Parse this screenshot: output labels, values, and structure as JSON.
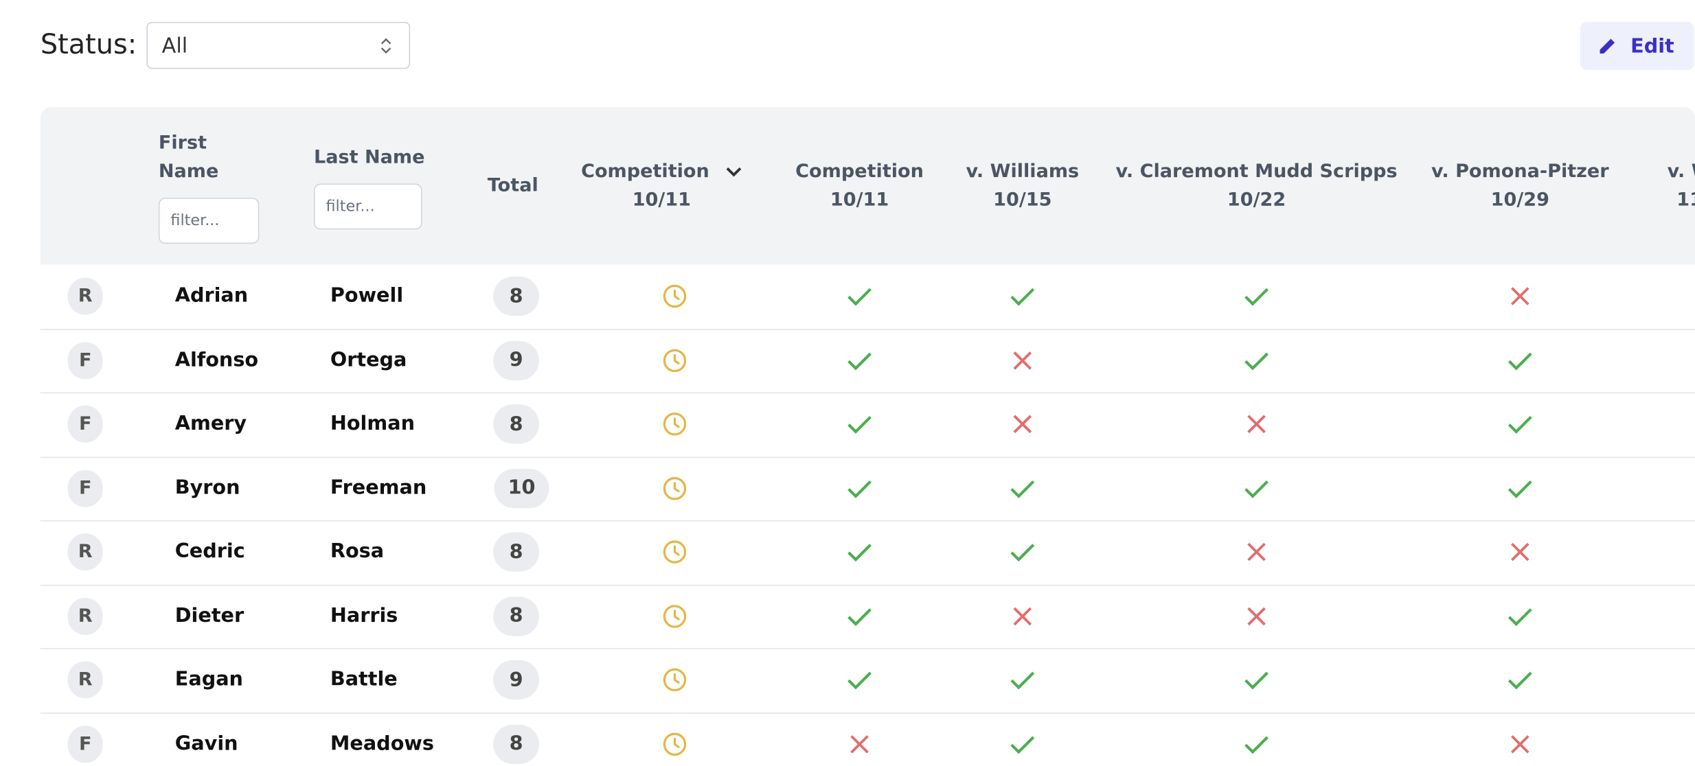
{
  "toolbar": {
    "status_label": "Status:",
    "status_value": "All",
    "edit_button": "Edit"
  },
  "table": {
    "headers": {
      "first_name": "First Name",
      "last_name": "Last Name",
      "total": "Total",
      "filter_placeholder": "filter..."
    },
    "columns": [
      {
        "title": "Competition",
        "date": "10/11",
        "sorted": true
      },
      {
        "title": "Competition",
        "date": "10/11",
        "sorted": false
      },
      {
        "title": "v. Williams",
        "date": "10/15",
        "sorted": false
      },
      {
        "title": "v. Claremont Mudd Scripps",
        "date": "10/22",
        "sorted": false
      },
      {
        "title": "v. Pomona-Pitzer",
        "date": "10/29",
        "sorted": false
      },
      {
        "title": "v. W",
        "date": "11",
        "sorted": false
      }
    ],
    "rows": [
      {
        "status": "R",
        "first": "Adrian",
        "last": "Powell",
        "total": "8",
        "attendance": [
          "pending",
          "present",
          "present",
          "present",
          "absent"
        ]
      },
      {
        "status": "F",
        "first": "Alfonso",
        "last": "Ortega",
        "total": "9",
        "attendance": [
          "pending",
          "present",
          "absent",
          "present",
          "present"
        ]
      },
      {
        "status": "F",
        "first": "Amery",
        "last": "Holman",
        "total": "8",
        "attendance": [
          "pending",
          "present",
          "absent",
          "absent",
          "present"
        ]
      },
      {
        "status": "F",
        "first": "Byron",
        "last": "Freeman",
        "total": "10",
        "attendance": [
          "pending",
          "present",
          "present",
          "present",
          "present"
        ]
      },
      {
        "status": "R",
        "first": "Cedric",
        "last": "Rosa",
        "total": "8",
        "attendance": [
          "pending",
          "present",
          "present",
          "absent",
          "absent"
        ]
      },
      {
        "status": "R",
        "first": "Dieter",
        "last": "Harris",
        "total": "8",
        "attendance": [
          "pending",
          "present",
          "absent",
          "absent",
          "present"
        ]
      },
      {
        "status": "R",
        "first": "Eagan",
        "last": "Battle",
        "total": "9",
        "attendance": [
          "pending",
          "present",
          "present",
          "present",
          "present"
        ]
      },
      {
        "status": "F",
        "first": "Gavin",
        "last": "Meadows",
        "total": "8",
        "attendance": [
          "pending",
          "absent",
          "present",
          "present",
          "absent"
        ]
      }
    ]
  }
}
